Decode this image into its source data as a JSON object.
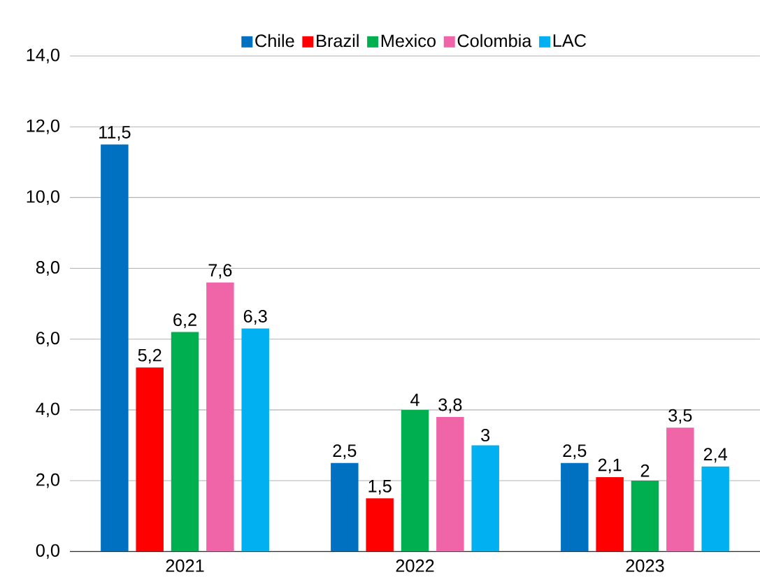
{
  "chart_data": {
    "type": "bar",
    "categories": [
      "2021",
      "2022",
      "2023"
    ],
    "series": [
      {
        "name": "Chile",
        "color": "#0070c0",
        "values": [
          11.5,
          2.5,
          2.5
        ],
        "value_labels": [
          "11,5",
          "2,5",
          "2,5"
        ]
      },
      {
        "name": "Brazil",
        "color": "#ff0000",
        "values": [
          5.2,
          1.5,
          2.1
        ],
        "value_labels": [
          "5,2",
          "1,5",
          "2,1"
        ]
      },
      {
        "name": "Mexico",
        "color": "#00b050",
        "values": [
          6.2,
          4,
          2
        ],
        "value_labels": [
          "6,2",
          "4",
          "2"
        ]
      },
      {
        "name": "Colombia",
        "color": "#f064a8",
        "values": [
          7.6,
          3.8,
          3.5
        ],
        "value_labels": [
          "7,6",
          "3,8",
          "3,5"
        ]
      },
      {
        "name": "LAC",
        "color": "#00b0f0",
        "values": [
          6.3,
          3,
          2.4
        ],
        "value_labels": [
          "6,3",
          "3",
          "2,4"
        ]
      }
    ],
    "ylim": [
      0,
      14
    ],
    "yticks": [
      {
        "value": 0,
        "label": "0,0"
      },
      {
        "value": 2,
        "label": "2,0"
      },
      {
        "value": 4,
        "label": "4,0"
      },
      {
        "value": 6,
        "label": "6,0"
      },
      {
        "value": 8,
        "label": "8,0"
      },
      {
        "value": 10,
        "label": "10,0"
      },
      {
        "value": 12,
        "label": "12,0"
      },
      {
        "value": 14,
        "label": "14,0"
      }
    ],
    "grid": "y",
    "legend": "top"
  }
}
